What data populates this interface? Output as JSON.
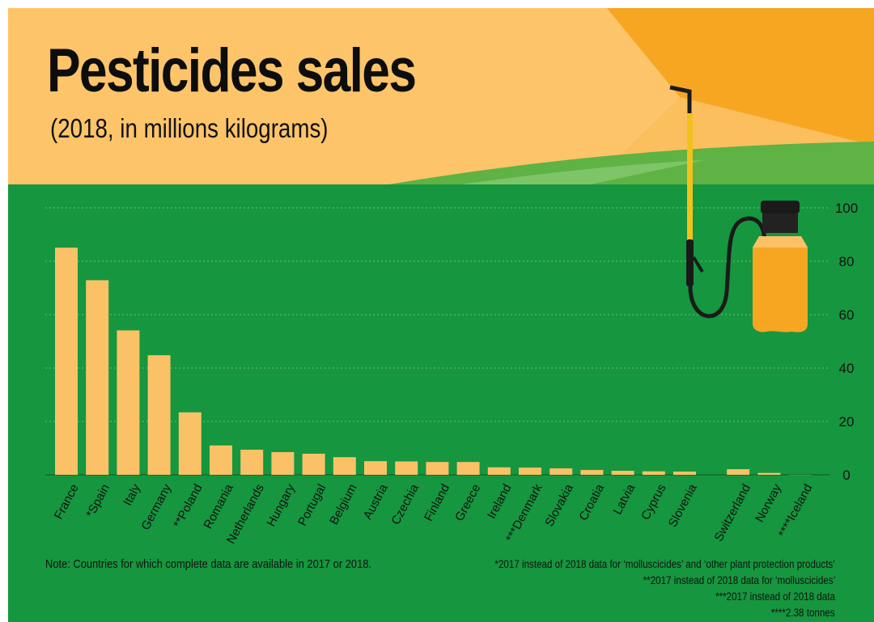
{
  "title": "Pesticides sales",
  "subtitle": "(2018, in millions kilograms)",
  "note": "Note: Countries for which complete data are available in 2017 or 2018.",
  "footnotes": [
    "*2017 instead of 2018 data for ‘molluscicides’ and ‘other plant protection products’",
    "**2017 instead of 2018 data for ‘molluscicides’",
    "***2017 instead of 2018 data",
    "****2.38 tonnes"
  ],
  "colors": {
    "bar": "#fbc166",
    "background_green": "#15963f",
    "header_orange": "#fbbf5e",
    "sun_orange": "#f7a621",
    "hill_green": "#5fb244"
  },
  "chart_data": {
    "type": "bar",
    "title": "Pesticides sales",
    "subtitle": "(2018, in millions kilograms)",
    "xlabel": "",
    "ylabel": "",
    "ylim": [
      0,
      100
    ],
    "yticks": [
      0,
      20,
      40,
      60,
      80,
      100
    ],
    "grid": true,
    "categories": [
      "France",
      "*Spain",
      "Italy",
      "Germany",
      "**Poland",
      "Romania",
      "Netherlands",
      "Hungary",
      "Portugal",
      "Belgium",
      "Austria",
      "Czechia",
      "Finland",
      "Greece",
      "Ireland",
      "***Denmark",
      "Slovakia",
      "Croatia",
      "Latvia",
      "Cyprus",
      "Slovenia",
      "Switzerland",
      "Norway",
      "****Iceland"
    ],
    "values": [
      85.1,
      72.9,
      54.1,
      44.8,
      23.4,
      11.0,
      9.4,
      8.5,
      7.9,
      6.6,
      5.1,
      5.0,
      4.8,
      4.8,
      2.8,
      2.7,
      2.4,
      1.8,
      1.5,
      1.3,
      1.2,
      2.1,
      0.7,
      0.002
    ]
  }
}
